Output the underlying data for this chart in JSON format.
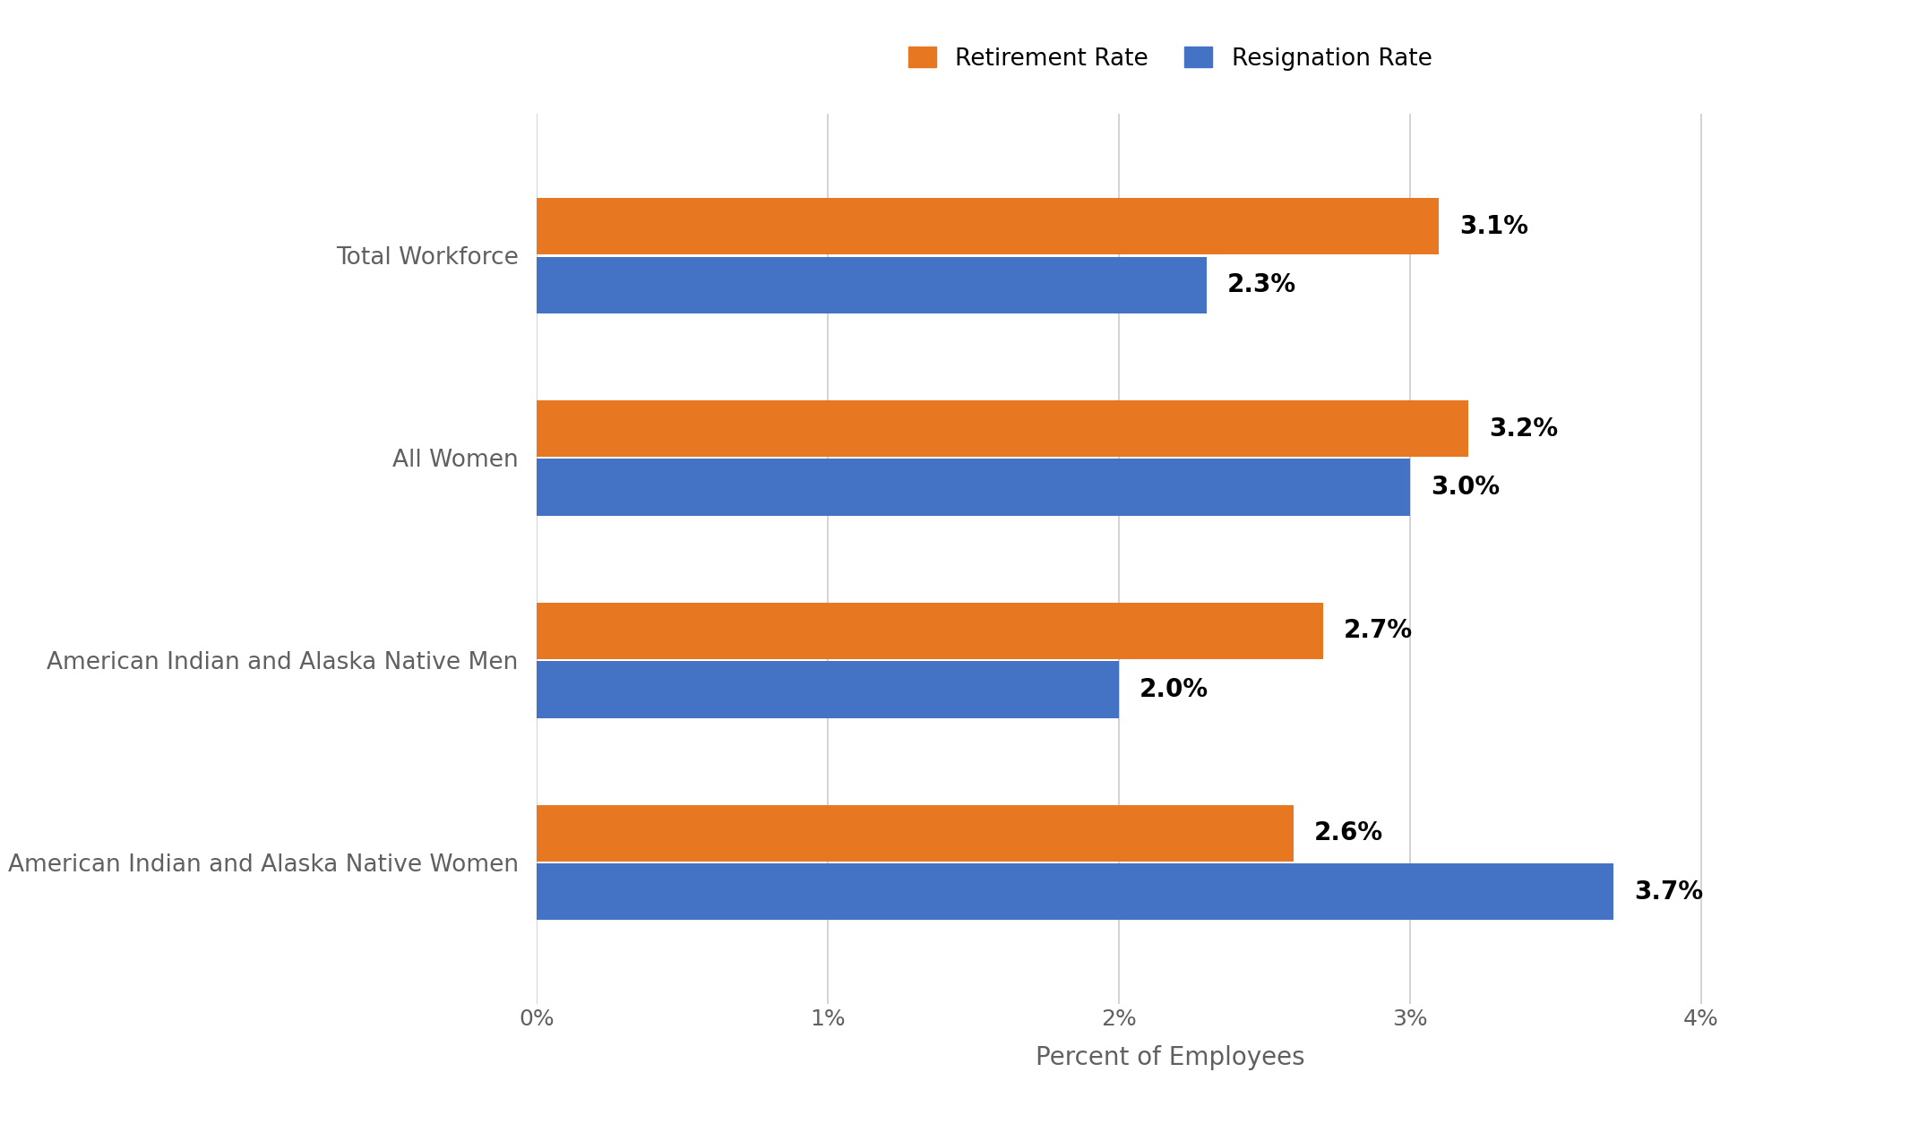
{
  "categories": [
    "American Indian and Alaska Native Women",
    "American Indian and Alaska Native Men",
    "All Women",
    "Total Workforce"
  ],
  "retirement_rates": [
    2.6,
    2.7,
    3.2,
    3.1
  ],
  "resignation_rates": [
    3.7,
    2.0,
    3.0,
    2.3
  ],
  "retirement_color": "#E87722",
  "resignation_color": "#4472C4",
  "retirement_label": "Retirement Rate",
  "resignation_label": "Resignation Rate",
  "xlabel": "Percent of Employees",
  "xlim_max": 4.35,
  "xtick_values": [
    0,
    1,
    2,
    3,
    4
  ],
  "xticklabels": [
    "0%",
    "1%",
    "2%",
    "3%",
    "4%"
  ],
  "background_color": "#ffffff",
  "bar_height": 0.28,
  "tick_fontsize": 18,
  "legend_fontsize": 19,
  "xlabel_fontsize": 20,
  "annotation_fontsize": 20,
  "category_fontsize": 19,
  "grid_color": "#cccccc",
  "text_color": "#606060"
}
